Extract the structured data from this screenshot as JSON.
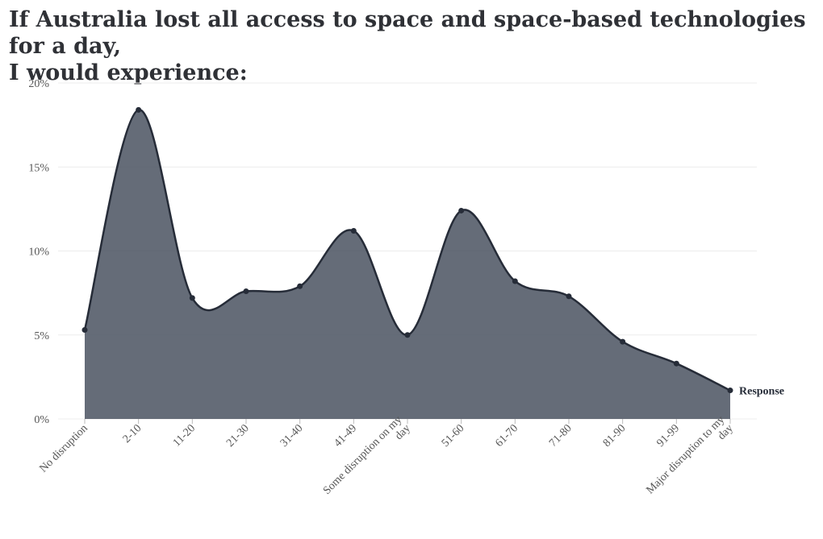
{
  "chart_data": {
    "type": "area",
    "title_lines": [
      "If Australia lost all access to space and space-based technologies for a day,",
      "I would experience:"
    ],
    "categories": [
      "No disruption",
      "2-10",
      "11-20",
      "21-30",
      "31-40",
      "41-49",
      "Some disruption on my day",
      "51-60",
      "61-70",
      "71-80",
      "81-90",
      "91-99",
      "Major disruption to my day"
    ],
    "category_lines": [
      [
        "No disruption"
      ],
      [
        "2-10"
      ],
      [
        "11-20"
      ],
      [
        "21-30"
      ],
      [
        "31-40"
      ],
      [
        "41-49"
      ],
      [
        "Some disruption on my",
        "day"
      ],
      [
        "51-60"
      ],
      [
        "61-70"
      ],
      [
        "71-80"
      ],
      [
        "81-90"
      ],
      [
        "91-99"
      ],
      [
        "Major disruption to my",
        "day"
      ]
    ],
    "series": [
      {
        "name": "Response",
        "values": [
          5.3,
          18.4,
          7.2,
          7.6,
          7.9,
          11.2,
          5.0,
          12.4,
          8.2,
          7.3,
          4.6,
          3.3,
          1.7
        ]
      }
    ],
    "ylim": [
      0,
      20
    ],
    "yticks": [
      0,
      5,
      10,
      15,
      20
    ],
    "ytick_labels": [
      "0%",
      "5%",
      "10%",
      "15%",
      "20%"
    ],
    "grid": true,
    "legend": "end-of-line label",
    "colors": {
      "area": "#4a5260",
      "line": "#262c38"
    }
  }
}
